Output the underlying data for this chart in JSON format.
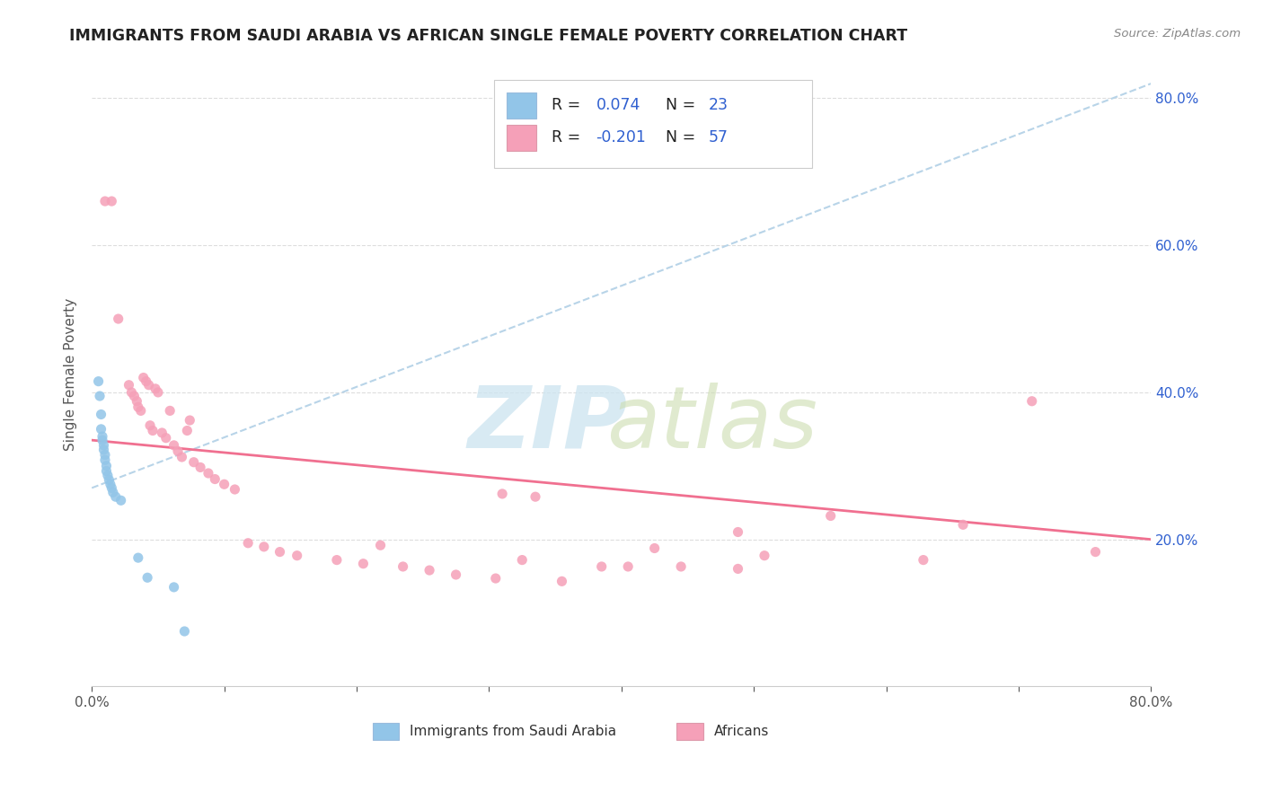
{
  "title": "IMMIGRANTS FROM SAUDI ARABIA VS AFRICAN SINGLE FEMALE POVERTY CORRELATION CHART",
  "source": "Source: ZipAtlas.com",
  "ylabel": "Single Female Poverty",
  "x_min": 0.0,
  "x_max": 0.8,
  "y_min": 0.0,
  "y_max": 0.85,
  "y_ticks": [
    0.2,
    0.4,
    0.6,
    0.8
  ],
  "y_tick_labels": [
    "20.0%",
    "40.0%",
    "60.0%",
    "80.0%"
  ],
  "blue_color": "#92c5e8",
  "pink_color": "#f5a0b8",
  "trendline_blue_color": "#b8d4e8",
  "trendline_pink_color": "#f07090",
  "r_color": "#3060d0",
  "blue_trendline": [
    0.0,
    0.27,
    0.8,
    0.82
  ],
  "pink_trendline": [
    0.0,
    0.335,
    0.8,
    0.2
  ],
  "blue_scatter": [
    [
      0.005,
      0.415
    ],
    [
      0.006,
      0.395
    ],
    [
      0.007,
      0.37
    ],
    [
      0.007,
      0.35
    ],
    [
      0.008,
      0.34
    ],
    [
      0.008,
      0.335
    ],
    [
      0.009,
      0.328
    ],
    [
      0.009,
      0.322
    ],
    [
      0.01,
      0.315
    ],
    [
      0.01,
      0.308
    ],
    [
      0.011,
      0.3
    ],
    [
      0.011,
      0.293
    ],
    [
      0.012,
      0.287
    ],
    [
      0.013,
      0.281
    ],
    [
      0.014,
      0.275
    ],
    [
      0.015,
      0.27
    ],
    [
      0.016,
      0.264
    ],
    [
      0.018,
      0.258
    ],
    [
      0.022,
      0.253
    ],
    [
      0.035,
      0.175
    ],
    [
      0.042,
      0.148
    ],
    [
      0.062,
      0.135
    ],
    [
      0.07,
      0.075
    ]
  ],
  "pink_scatter": [
    [
      0.01,
      0.66
    ],
    [
      0.015,
      0.66
    ],
    [
      0.02,
      0.5
    ],
    [
      0.028,
      0.41
    ],
    [
      0.03,
      0.4
    ],
    [
      0.032,
      0.395
    ],
    [
      0.034,
      0.388
    ],
    [
      0.035,
      0.38
    ],
    [
      0.037,
      0.375
    ],
    [
      0.039,
      0.42
    ],
    [
      0.041,
      0.415
    ],
    [
      0.043,
      0.41
    ],
    [
      0.044,
      0.355
    ],
    [
      0.046,
      0.348
    ],
    [
      0.048,
      0.405
    ],
    [
      0.05,
      0.4
    ],
    [
      0.053,
      0.345
    ],
    [
      0.056,
      0.338
    ],
    [
      0.059,
      0.375
    ],
    [
      0.062,
      0.328
    ],
    [
      0.065,
      0.32
    ],
    [
      0.068,
      0.312
    ],
    [
      0.072,
      0.348
    ],
    [
      0.074,
      0.362
    ],
    [
      0.077,
      0.305
    ],
    [
      0.082,
      0.298
    ],
    [
      0.088,
      0.29
    ],
    [
      0.093,
      0.282
    ],
    [
      0.1,
      0.275
    ],
    [
      0.108,
      0.268
    ],
    [
      0.118,
      0.195
    ],
    [
      0.13,
      0.19
    ],
    [
      0.142,
      0.183
    ],
    [
      0.155,
      0.178
    ],
    [
      0.185,
      0.172
    ],
    [
      0.205,
      0.167
    ],
    [
      0.218,
      0.192
    ],
    [
      0.235,
      0.163
    ],
    [
      0.255,
      0.158
    ],
    [
      0.275,
      0.152
    ],
    [
      0.305,
      0.147
    ],
    [
      0.325,
      0.172
    ],
    [
      0.355,
      0.143
    ],
    [
      0.385,
      0.163
    ],
    [
      0.405,
      0.163
    ],
    [
      0.425,
      0.188
    ],
    [
      0.445,
      0.163
    ],
    [
      0.488,
      0.21
    ],
    [
      0.508,
      0.178
    ],
    [
      0.31,
      0.262
    ],
    [
      0.335,
      0.258
    ],
    [
      0.558,
      0.232
    ],
    [
      0.628,
      0.172
    ],
    [
      0.658,
      0.22
    ],
    [
      0.71,
      0.388
    ],
    [
      0.758,
      0.183
    ],
    [
      0.488,
      0.16
    ]
  ]
}
